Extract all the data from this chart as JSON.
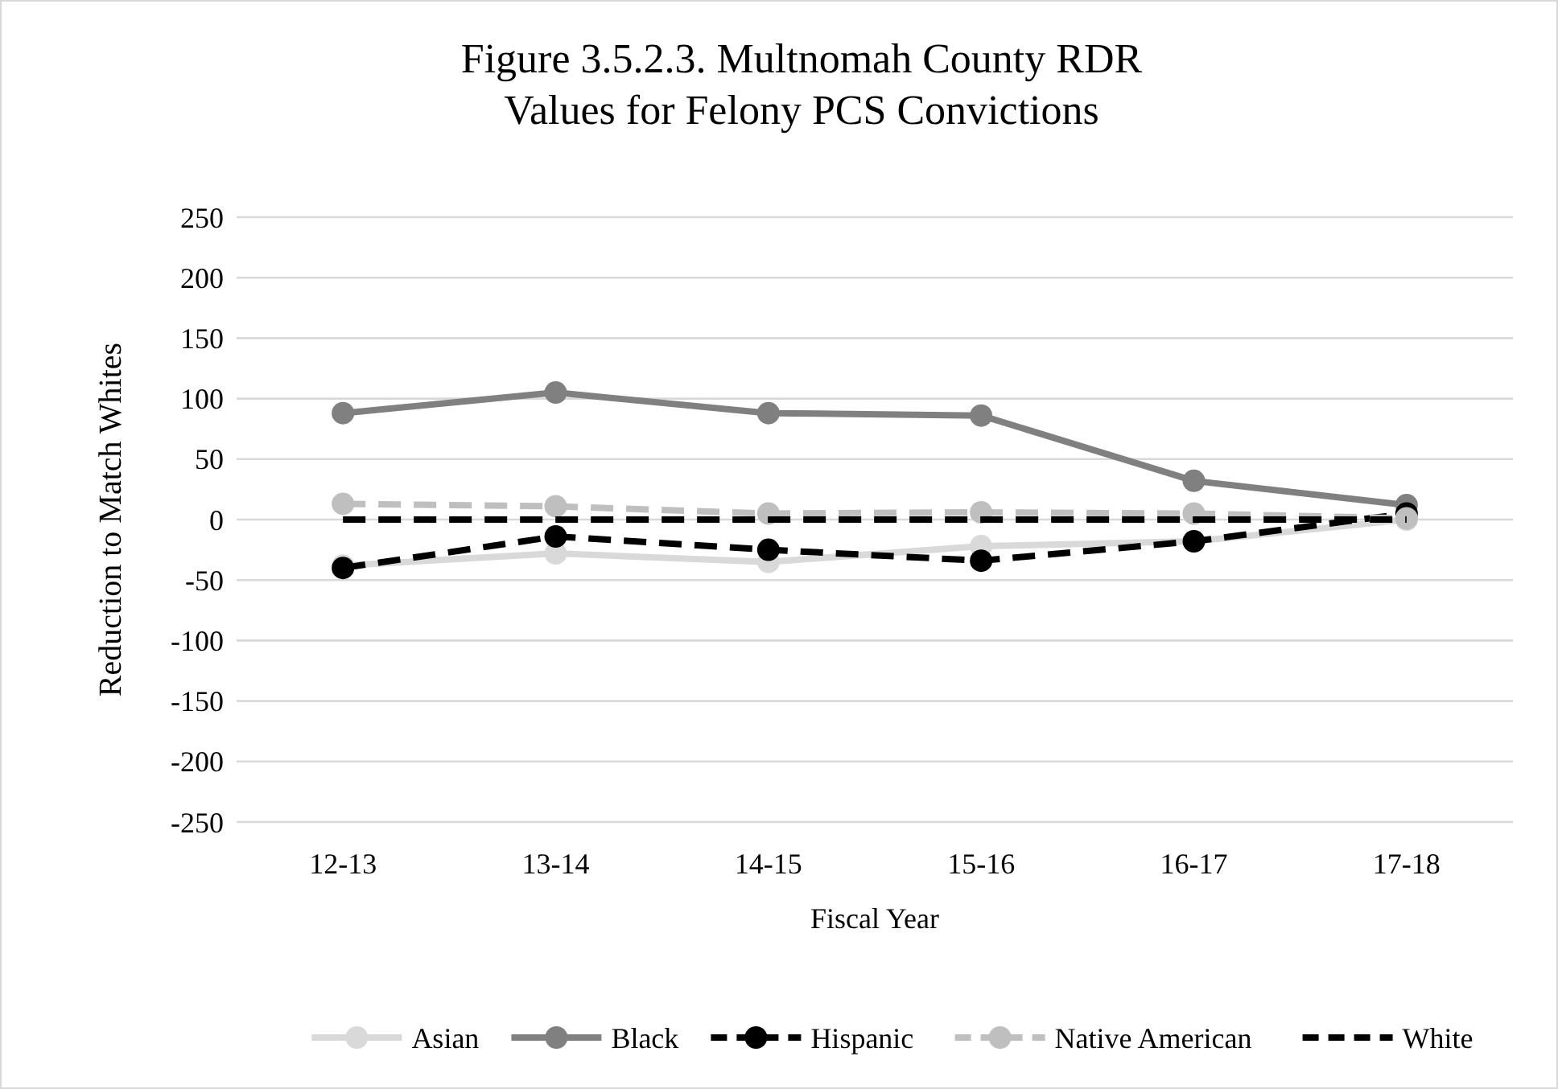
{
  "chart_data": {
    "type": "line",
    "title": "Figure 3.5.2.3. Multnomah County RDR Values for Felony PCS Convictions",
    "xlabel": "Fiscal Year",
    "ylabel": "Reduction to Match Whites",
    "categories": [
      "12-13",
      "13-14",
      "14-15",
      "15-16",
      "16-17",
      "17-18"
    ],
    "ylim": [
      -250,
      250
    ],
    "yticks": [
      -250,
      -200,
      -150,
      -100,
      -50,
      0,
      50,
      100,
      150,
      200,
      250
    ],
    "grid": "y",
    "legend": "bottom",
    "marker": "circle",
    "series": [
      {
        "name": "Asian",
        "color": "#d9d9d9",
        "values": [
          -38,
          -28,
          -35,
          -22,
          -18,
          0
        ],
        "line_style": "solid"
      },
      {
        "name": "Black",
        "color": "#808080",
        "values": [
          88,
          105,
          88,
          86,
          32,
          12
        ],
        "line_style": "solid"
      },
      {
        "name": "Hispanic",
        "color": "#000000",
        "values": [
          -40,
          -14,
          -25,
          -34,
          -18,
          5
        ],
        "line_style": "dashed"
      },
      {
        "name": "Native American",
        "color": "#bfbfbf",
        "values": [
          13,
          11,
          5,
          6,
          5,
          1
        ],
        "line_style": "dashed"
      },
      {
        "name": "White",
        "color": "#000000",
        "values": [
          0,
          0,
          0,
          0,
          0,
          0
        ],
        "line_style": "dashed",
        "marker": "none"
      }
    ]
  }
}
